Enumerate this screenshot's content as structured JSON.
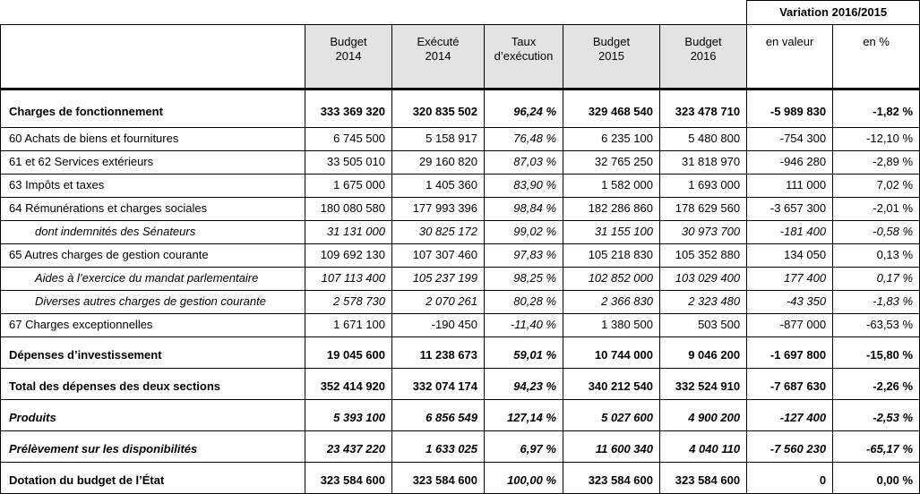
{
  "table": {
    "variation_header": "Variation 2016/2015",
    "columns": [
      {
        "label": "Budget\n2014"
      },
      {
        "label": "Exécuté\n2014"
      },
      {
        "label": "Taux\nd’exécution"
      },
      {
        "label": "Budget\n2015"
      },
      {
        "label": "Budget\n2016"
      },
      {
        "label": "en valeur"
      },
      {
        "label": "en %"
      }
    ],
    "rows": [
      {
        "label": "Charges de fonctionnement",
        "bold": true,
        "italic": false,
        "section": false,
        "tall": true,
        "indent": 0,
        "values": [
          "333 369 320",
          "320 835 502",
          "96,24 %",
          "329 468 540",
          "323 478 710",
          "-5 989 830",
          "-1,82 %"
        ]
      },
      {
        "label": "60  Achats de biens et fournitures",
        "bold": false,
        "italic": false,
        "section": false,
        "tall": false,
        "indent": 0,
        "values": [
          "6 745 500",
          "5 158 917",
          "76,48 %",
          "6 235 100",
          "5 480 800",
          "-754 300",
          "-12,10 %"
        ]
      },
      {
        "label": "61 et 62  Services extérieurs",
        "bold": false,
        "italic": false,
        "section": false,
        "tall": false,
        "indent": 0,
        "values": [
          "33 505 010",
          "29 160 820",
          "87,03 %",
          "32 765 250",
          "31 818 970",
          "-946 280",
          "-2,89 %"
        ]
      },
      {
        "label": "63  Impôts et taxes",
        "bold": false,
        "italic": false,
        "section": false,
        "tall": false,
        "indent": 0,
        "values": [
          "1 675 000",
          "1 405 360",
          "83,90 %",
          "1 582 000",
          "1 693 000",
          "111 000",
          "7,02 %"
        ]
      },
      {
        "label": "64  Rémunérations et charges sociales",
        "bold": false,
        "italic": false,
        "section": false,
        "tall": false,
        "indent": 0,
        "values": [
          "180 080 580",
          "177 993 396",
          "98,84 %",
          "182 286 860",
          "178 629 560",
          "-3 657 300",
          "-2,01 %"
        ]
      },
      {
        "label": "dont indemnités des Sénateurs",
        "bold": false,
        "italic": true,
        "section": false,
        "tall": false,
        "indent": 1,
        "values": [
          "31 131 000",
          "30 825 172",
          "99,02 %",
          "31 155 100",
          "30 973 700",
          "-181 400",
          "-0,58 %"
        ]
      },
      {
        "label": "65  Autres charges de gestion courante",
        "bold": false,
        "italic": false,
        "section": false,
        "tall": false,
        "indent": 0,
        "values": [
          "109 692 130",
          "107 307 460",
          "97,83 %",
          "105 218 830",
          "105 352 880",
          "134 050",
          "0,13 %"
        ]
      },
      {
        "label": "Aides à l’exercice du mandat parlementaire",
        "bold": false,
        "italic": true,
        "section": false,
        "tall": false,
        "indent": 1,
        "values": [
          "107 113 400",
          "105 237 199",
          "98,25 %",
          "102 852 000",
          "103 029 400",
          "177 400",
          "0,17 %"
        ]
      },
      {
        "label": "Diverses autres charges de gestion courante",
        "bold": false,
        "italic": true,
        "section": false,
        "tall": false,
        "indent": 1,
        "values": [
          "2 578 730",
          "2 070 261",
          "80,28 %",
          "2 366 830",
          "2 323 480",
          "-43 350",
          "-1,83 %"
        ]
      },
      {
        "label": "67  Charges exceptionnelles",
        "bold": false,
        "italic": false,
        "section": false,
        "tall": false,
        "indent": 0,
        "values": [
          "1 671 100",
          "-190 450",
          "-11,40 %",
          "1 380 500",
          "503 500",
          "-877 000",
          "-63,53 %"
        ]
      },
      {
        "label": "Dépenses d’investissement",
        "bold": true,
        "italic": false,
        "section": true,
        "tall": false,
        "indent": 0,
        "values": [
          "19 045 600",
          "11 238 673",
          "59,01 %",
          "10 744 000",
          "9 046 200",
          "-1 697 800",
          "-15,80 %"
        ]
      },
      {
        "label": "Total des dépenses des deux sections",
        "bold": true,
        "italic": false,
        "section": true,
        "tall": false,
        "indent": 0,
        "values": [
          "352 414 920",
          "332 074 174",
          "94,23 %",
          "340 212 540",
          "332 524 910",
          "-7 687 630",
          "-2,26 %"
        ]
      },
      {
        "label": "Produits",
        "bold": true,
        "italic": true,
        "section": true,
        "tall": false,
        "indent": 0,
        "values": [
          "5 393 100",
          "6 856 549",
          "127,14 %",
          "5 027 600",
          "4 900 200",
          "-127 400",
          "-2,53 %"
        ]
      },
      {
        "label": "Prélèvement sur les disponibilités",
        "bold": true,
        "italic": true,
        "section": true,
        "tall": false,
        "indent": 0,
        "values": [
          "23 437 220",
          "1 633 025",
          "6,97 %",
          "11 600 340",
          "4 040 110",
          "-7 560 230",
          "-65,17 %"
        ]
      },
      {
        "label": "Dotation du budget de l’État",
        "bold": true,
        "italic": false,
        "section": true,
        "tall": false,
        "indent": 0,
        "values": [
          "323 584 600",
          "323 584 600",
          "100,00 %",
          "323 584 600",
          "323 584 600",
          "0",
          "0,00 %"
        ]
      }
    ]
  }
}
